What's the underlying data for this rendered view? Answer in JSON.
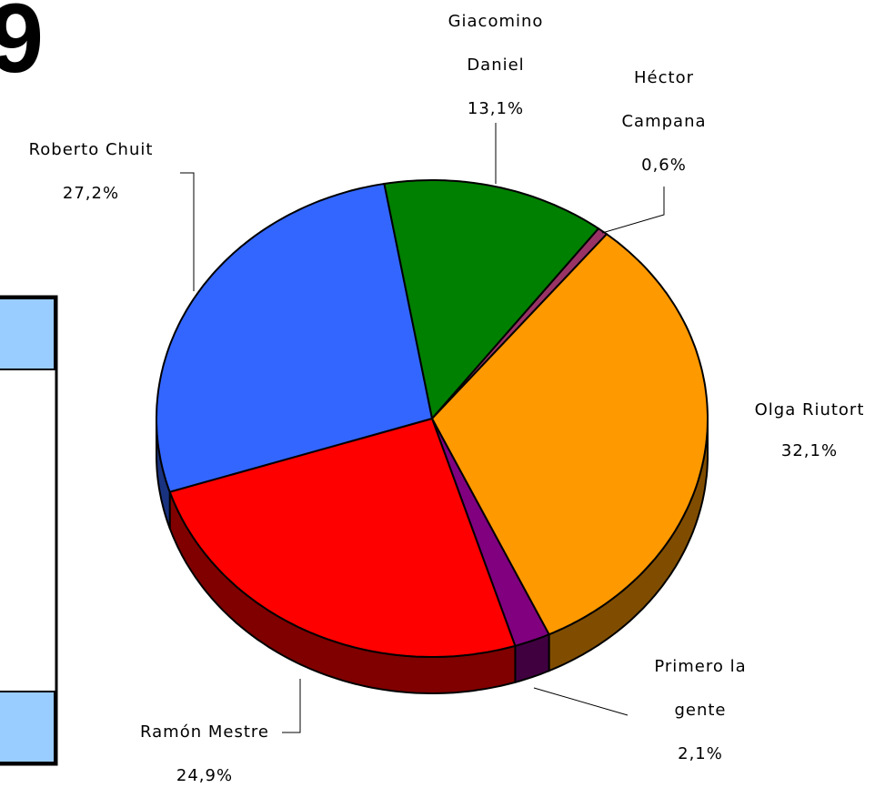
{
  "heading": "9",
  "chart_data": {
    "type": "pie3d",
    "categories": [
      "Giacomino Daniel",
      "Héctor Campana",
      "Olga Riutort",
      "Primero la gente",
      "Ramón Mestre",
      "Roberto Chuit"
    ],
    "values": [
      13.1,
      0.6,
      32.1,
      2.1,
      24.9,
      27.2
    ],
    "value_labels": [
      "13,1%",
      "0,6%",
      "32,1%",
      "2,1%",
      "24,9%",
      "27,2%"
    ],
    "colors": [
      "#008000",
      "#993366",
      "#ff9900",
      "#800080",
      "#ff0000",
      "#3366ff"
    ]
  }
}
